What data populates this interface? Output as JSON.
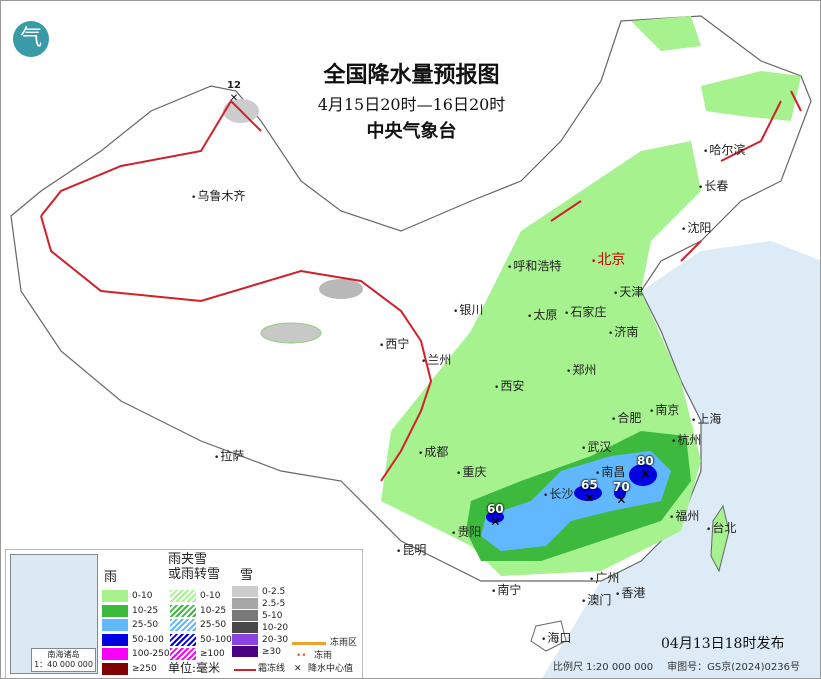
{
  "header": {
    "title": "全国降水量预报图",
    "period": "4月15日20时—16日20时",
    "agency": "中央气象台",
    "logo_icon": "cma-logo"
  },
  "cities": [
    "北京",
    "天津",
    "石家庄",
    "太原",
    "呼和浩特",
    "沈阳",
    "长春",
    "哈尔滨",
    "济南",
    "郑州",
    "西安",
    "银川",
    "兰州",
    "西宁",
    "成都",
    "重庆",
    "拉萨",
    "乌鲁木齐",
    "武汉",
    "长沙",
    "南昌",
    "合肥",
    "南京",
    "上海",
    "杭州",
    "福州",
    "台北",
    "贵阳",
    "昆明",
    "南宁",
    "广州",
    "澳门",
    "香港",
    "海口"
  ],
  "centers": [
    "60",
    "65",
    "70",
    "80",
    "12"
  ],
  "legend": {
    "rain": {
      "title": "雨",
      "items": [
        {
          "label": "0-10",
          "color": "#a6f28f"
        },
        {
          "label": "10-25",
          "color": "#3dba3d"
        },
        {
          "label": "25-50",
          "color": "#61b8ff"
        },
        {
          "label": "50-100",
          "color": "#0000e1"
        },
        {
          "label": "100-250",
          "color": "#fa00fa"
        },
        {
          "label": "≥250",
          "color": "#800000"
        }
      ]
    },
    "mix": {
      "title_line1": "雨夹雪",
      "title_line2": "或雨转雪",
      "items": [
        {
          "label": "0-10",
          "color": "#a6f28f"
        },
        {
          "label": "10-25",
          "color": "#3dba3d"
        },
        {
          "label": "25-50",
          "color": "#61b8ff"
        },
        {
          "label": "50-100",
          "color": "#0000e1"
        },
        {
          "label": "≥100",
          "color": "#fa00fa"
        }
      ]
    },
    "snow": {
      "title": "雪",
      "items": [
        {
          "label": "0-2.5",
          "color": "#cccccc"
        },
        {
          "label": "2.5-5",
          "color": "#a6a6a6"
        },
        {
          "label": "5-10",
          "color": "#787878"
        },
        {
          "label": "10-20",
          "color": "#484848"
        },
        {
          "label": "20-30",
          "color": "#8a43e0"
        },
        {
          "label": "≥30",
          "color": "#4b0082"
        }
      ]
    },
    "unit": "单位:毫米",
    "freezing_rain_zone": "冻雨区",
    "freezing_rain": "冻雨",
    "frost_line": "霜冻线",
    "center_value": "降水中心值",
    "inset_caption_line1": "南海诸岛",
    "inset_caption_line2": "1：40 000 000"
  },
  "issued": "04月13日18时发布",
  "footer": {
    "scale": "比例尺 1:20 000 000",
    "review_no": "审图号：GS京(2024)0236号"
  }
}
